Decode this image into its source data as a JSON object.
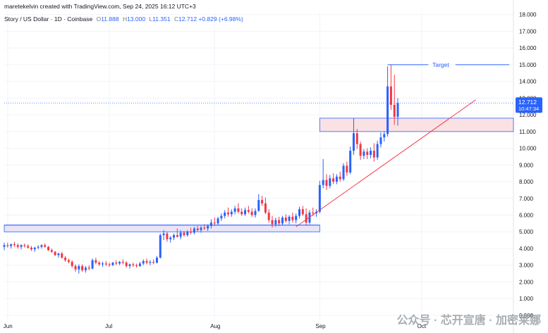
{
  "header": {
    "created_by": "maretekelvin created with TradingView.com, Sep 24, 2025 16:12 UTC+3",
    "symbol": "Story / US Dollar · 1D · Coinbase",
    "open_label": "O",
    "open": "11.888",
    "high_label": "H",
    "high": "13.000",
    "low_label": "L",
    "low": "11.351",
    "close_label": "C",
    "close": "12.712",
    "change": "+0.829 (+6.98%)"
  },
  "price_tag": {
    "price": "12.712",
    "countdown": "10:47:34"
  },
  "watermark": {
    "text": "公众号 · 芯开宣唐 · 加密莱娜"
  },
  "colors": {
    "up": "#2962ff",
    "down": "#f23645",
    "grid": "#f0f3fa",
    "zone_fill": "#f8d7da",
    "zone_border": "#2962ff",
    "trendline": "#f23645",
    "support_zone_fill": "#e1dcf5"
  },
  "chart_data": {
    "type": "candlestick",
    "x_ticks": [
      "Jun",
      "Jul",
      "Aug",
      "Sep",
      "Oct"
    ],
    "y_ticks": [
      "18.000",
      "17.000",
      "16.000",
      "15.000",
      "14.000",
      "13.000",
      "12.000",
      "11.000",
      "10.000",
      "9.000",
      "8.000",
      "7.000",
      "6.000",
      "5.000",
      "4.000",
      "3.000",
      "2.000",
      "1.000",
      "0.000"
    ],
    "ylim": [
      -0.3,
      18.2
    ],
    "annotations": [
      {
        "type": "label",
        "text": "Target",
        "price": 15.0
      },
      {
        "type": "zone",
        "price_low": 11.0,
        "price_high": 11.8,
        "from": "Sep 1",
        "to": "Oct 31"
      },
      {
        "type": "zone",
        "price_low": 5.0,
        "price_high": 5.4,
        "from": "May 31",
        "to": "Sep 1"
      },
      {
        "type": "trendline",
        "from_date": "Aug 25",
        "from_price": 5.3,
        "to_date": "Oct 17",
        "to_price": 12.9
      },
      {
        "type": "horizontal_line",
        "price": 5.4,
        "from": "May 31",
        "to": "Sep 1"
      }
    ],
    "candles": [
      {
        "d": "May 31",
        "o": 4.1,
        "h": 4.35,
        "l": 3.9,
        "c": 4.2
      },
      {
        "d": "Jun 1",
        "o": 4.2,
        "h": 4.35,
        "l": 4.05,
        "c": 4.15
      },
      {
        "d": "Jun 2",
        "o": 4.15,
        "h": 4.3,
        "l": 4.0,
        "c": 4.25
      },
      {
        "d": "Jun 3",
        "o": 4.25,
        "h": 4.4,
        "l": 4.1,
        "c": 4.2
      },
      {
        "d": "Jun 4",
        "o": 4.2,
        "h": 4.3,
        "l": 4.0,
        "c": 4.1
      },
      {
        "d": "Jun 5",
        "o": 4.1,
        "h": 4.25,
        "l": 3.95,
        "c": 4.2
      },
      {
        "d": "Jun 6",
        "o": 4.2,
        "h": 4.3,
        "l": 4.05,
        "c": 4.15
      },
      {
        "d": "Jun 7",
        "o": 4.15,
        "h": 4.25,
        "l": 4.0,
        "c": 4.05
      },
      {
        "d": "Jun 8",
        "o": 4.05,
        "h": 4.15,
        "l": 3.85,
        "c": 3.95
      },
      {
        "d": "Jun 9",
        "o": 3.95,
        "h": 4.1,
        "l": 3.8,
        "c": 4.05
      },
      {
        "d": "Jun 10",
        "o": 4.05,
        "h": 4.2,
        "l": 3.95,
        "c": 4.1
      },
      {
        "d": "Jun 11",
        "o": 4.1,
        "h": 4.25,
        "l": 4.0,
        "c": 4.2
      },
      {
        "d": "Jun 12",
        "o": 4.2,
        "h": 4.3,
        "l": 4.05,
        "c": 4.1
      },
      {
        "d": "Jun 13",
        "o": 4.1,
        "h": 4.15,
        "l": 3.85,
        "c": 3.9
      },
      {
        "d": "Jun 14",
        "o": 3.9,
        "h": 4.0,
        "l": 3.75,
        "c": 3.8
      },
      {
        "d": "Jun 15",
        "o": 3.8,
        "h": 3.85,
        "l": 3.55,
        "c": 3.6
      },
      {
        "d": "Jun 16",
        "o": 3.6,
        "h": 3.75,
        "l": 3.45,
        "c": 3.7
      },
      {
        "d": "Jun 17",
        "o": 3.7,
        "h": 3.8,
        "l": 3.4,
        "c": 3.45
      },
      {
        "d": "Jun 18",
        "o": 3.45,
        "h": 3.55,
        "l": 3.2,
        "c": 3.3
      },
      {
        "d": "Jun 19",
        "o": 3.3,
        "h": 3.4,
        "l": 3.1,
        "c": 3.2
      },
      {
        "d": "Jun 20",
        "o": 3.2,
        "h": 3.3,
        "l": 2.85,
        "c": 2.95
      },
      {
        "d": "Jun 21",
        "o": 2.95,
        "h": 3.05,
        "l": 2.6,
        "c": 2.75
      },
      {
        "d": "Jun 22",
        "o": 2.75,
        "h": 3.05,
        "l": 2.5,
        "c": 2.95
      },
      {
        "d": "Jun 23",
        "o": 2.95,
        "h": 3.05,
        "l": 2.6,
        "c": 2.7
      },
      {
        "d": "Jun 24",
        "o": 2.7,
        "h": 2.95,
        "l": 2.55,
        "c": 2.85
      },
      {
        "d": "Jun 25",
        "o": 2.85,
        "h": 3.0,
        "l": 2.7,
        "c": 2.8
      },
      {
        "d": "Jun 26",
        "o": 2.8,
        "h": 3.4,
        "l": 2.75,
        "c": 3.3
      },
      {
        "d": "Jun 27",
        "o": 3.3,
        "h": 3.45,
        "l": 3.05,
        "c": 3.15
      },
      {
        "d": "Jun 28",
        "o": 3.15,
        "h": 3.25,
        "l": 2.95,
        "c": 3.05
      },
      {
        "d": "Jun 29",
        "o": 3.05,
        "h": 3.2,
        "l": 2.9,
        "c": 3.1
      },
      {
        "d": "Jun 30",
        "o": 3.1,
        "h": 3.25,
        "l": 2.95,
        "c": 3.05
      },
      {
        "d": "Jul 1",
        "o": 3.05,
        "h": 3.15,
        "l": 2.9,
        "c": 3.0
      },
      {
        "d": "Jul 2",
        "o": 3.0,
        "h": 3.2,
        "l": 2.95,
        "c": 3.15
      },
      {
        "d": "Jul 3",
        "o": 3.15,
        "h": 3.3,
        "l": 3.0,
        "c": 3.1
      },
      {
        "d": "Jul 4",
        "o": 3.1,
        "h": 3.25,
        "l": 3.0,
        "c": 3.2
      },
      {
        "d": "Jul 5",
        "o": 3.2,
        "h": 3.35,
        "l": 3.05,
        "c": 3.15
      },
      {
        "d": "Jul 6",
        "o": 3.15,
        "h": 3.25,
        "l": 2.85,
        "c": 2.95
      },
      {
        "d": "Jul 7",
        "o": 2.95,
        "h": 3.1,
        "l": 2.8,
        "c": 3.05
      },
      {
        "d": "Jul 8",
        "o": 3.05,
        "h": 3.15,
        "l": 2.9,
        "c": 3.0
      },
      {
        "d": "Jul 9",
        "o": 3.0,
        "h": 3.1,
        "l": 2.85,
        "c": 2.95
      },
      {
        "d": "Jul 10",
        "o": 2.95,
        "h": 3.2,
        "l": 2.9,
        "c": 3.1
      },
      {
        "d": "Jul 11",
        "o": 3.1,
        "h": 3.35,
        "l": 3.0,
        "c": 3.25
      },
      {
        "d": "Jul 12",
        "o": 3.25,
        "h": 3.4,
        "l": 3.05,
        "c": 3.15
      },
      {
        "d": "Jul 13",
        "o": 3.15,
        "h": 3.3,
        "l": 3.0,
        "c": 3.2
      },
      {
        "d": "Jul 14",
        "o": 3.2,
        "h": 3.35,
        "l": 3.05,
        "c": 3.15
      },
      {
        "d": "Jul 15",
        "o": 3.15,
        "h": 3.55,
        "l": 3.1,
        "c": 3.45
      },
      {
        "d": "Jul 16",
        "o": 3.45,
        "h": 4.9,
        "l": 3.4,
        "c": 4.8
      },
      {
        "d": "Jul 17",
        "o": 4.8,
        "h": 5.1,
        "l": 4.5,
        "c": 4.9
      },
      {
        "d": "Jul 18",
        "o": 4.9,
        "h": 5.0,
        "l": 4.4,
        "c": 4.55
      },
      {
        "d": "Jul 19",
        "o": 4.55,
        "h": 4.75,
        "l": 4.35,
        "c": 4.65
      },
      {
        "d": "Jul 20",
        "o": 4.65,
        "h": 4.9,
        "l": 4.5,
        "c": 4.8
      },
      {
        "d": "Jul 21",
        "o": 4.8,
        "h": 5.2,
        "l": 4.65,
        "c": 4.7
      },
      {
        "d": "Jul 22",
        "o": 4.7,
        "h": 5.1,
        "l": 4.55,
        "c": 4.95
      },
      {
        "d": "Jul 23",
        "o": 4.95,
        "h": 5.05,
        "l": 4.7,
        "c": 4.8
      },
      {
        "d": "Jul 24",
        "o": 4.8,
        "h": 5.1,
        "l": 4.7,
        "c": 5.0
      },
      {
        "d": "Jul 25",
        "o": 5.0,
        "h": 5.25,
        "l": 4.85,
        "c": 4.95
      },
      {
        "d": "Jul 26",
        "o": 4.95,
        "h": 5.3,
        "l": 4.85,
        "c": 5.2
      },
      {
        "d": "Jul 27",
        "o": 5.2,
        "h": 5.35,
        "l": 5.0,
        "c": 5.1
      },
      {
        "d": "Jul 28",
        "o": 5.1,
        "h": 5.35,
        "l": 4.95,
        "c": 5.25
      },
      {
        "d": "Jul 29",
        "o": 5.25,
        "h": 5.45,
        "l": 5.1,
        "c": 5.2
      },
      {
        "d": "Jul 30",
        "o": 5.2,
        "h": 5.45,
        "l": 5.05,
        "c": 5.35
      },
      {
        "d": "Jul 31",
        "o": 5.35,
        "h": 5.75,
        "l": 5.2,
        "c": 5.55
      },
      {
        "d": "Aug 1",
        "o": 5.55,
        "h": 5.85,
        "l": 5.35,
        "c": 5.5
      },
      {
        "d": "Aug 2",
        "o": 5.5,
        "h": 5.9,
        "l": 5.4,
        "c": 5.8
      },
      {
        "d": "Aug 3",
        "o": 5.8,
        "h": 6.1,
        "l": 5.65,
        "c": 5.95
      },
      {
        "d": "Aug 4",
        "o": 5.95,
        "h": 6.3,
        "l": 5.8,
        "c": 6.15
      },
      {
        "d": "Aug 5",
        "o": 6.15,
        "h": 6.45,
        "l": 5.9,
        "c": 6.05
      },
      {
        "d": "Aug 6",
        "o": 6.05,
        "h": 6.35,
        "l": 5.9,
        "c": 6.2
      },
      {
        "d": "Aug 7",
        "o": 6.2,
        "h": 6.55,
        "l": 6.05,
        "c": 6.4
      },
      {
        "d": "Aug 8",
        "o": 6.4,
        "h": 6.7,
        "l": 6.1,
        "c": 6.2
      },
      {
        "d": "Aug 9",
        "o": 6.2,
        "h": 6.4,
        "l": 5.95,
        "c": 6.05
      },
      {
        "d": "Aug 10",
        "o": 6.05,
        "h": 6.45,
        "l": 5.95,
        "c": 6.3
      },
      {
        "d": "Aug 11",
        "o": 6.3,
        "h": 6.55,
        "l": 6.1,
        "c": 6.2
      },
      {
        "d": "Aug 12",
        "o": 6.2,
        "h": 6.4,
        "l": 5.9,
        "c": 6.0
      },
      {
        "d": "Aug 13",
        "o": 6.0,
        "h": 6.4,
        "l": 5.85,
        "c": 6.25
      },
      {
        "d": "Aug 14",
        "o": 6.25,
        "h": 7.25,
        "l": 6.2,
        "c": 6.9
      },
      {
        "d": "Aug 15",
        "o": 6.9,
        "h": 7.15,
        "l": 6.55,
        "c": 6.7
      },
      {
        "d": "Aug 16",
        "o": 6.7,
        "h": 7.05,
        "l": 6.05,
        "c": 6.15
      },
      {
        "d": "Aug 17",
        "o": 6.15,
        "h": 6.35,
        "l": 5.55,
        "c": 5.7
      },
      {
        "d": "Aug 18",
        "o": 5.7,
        "h": 5.95,
        "l": 5.25,
        "c": 5.45
      },
      {
        "d": "Aug 19",
        "o": 5.45,
        "h": 5.85,
        "l": 5.3,
        "c": 5.7
      },
      {
        "d": "Aug 20",
        "o": 5.7,
        "h": 5.9,
        "l": 5.35,
        "c": 5.5
      },
      {
        "d": "Aug 21",
        "o": 5.5,
        "h": 5.95,
        "l": 5.4,
        "c": 5.85
      },
      {
        "d": "Aug 22",
        "o": 5.85,
        "h": 6.05,
        "l": 5.55,
        "c": 5.65
      },
      {
        "d": "Aug 23",
        "o": 5.65,
        "h": 6.0,
        "l": 5.45,
        "c": 5.9
      },
      {
        "d": "Aug 24",
        "o": 5.9,
        "h": 6.15,
        "l": 5.55,
        "c": 5.7
      },
      {
        "d": "Aug 25",
        "o": 5.7,
        "h": 6.1,
        "l": 5.5,
        "c": 5.95
      },
      {
        "d": "Aug 26",
        "o": 5.95,
        "h": 6.5,
        "l": 5.8,
        "c": 6.35
      },
      {
        "d": "Aug 27",
        "o": 6.35,
        "h": 6.55,
        "l": 5.95,
        "c": 6.05
      },
      {
        "d": "Aug 28",
        "o": 6.05,
        "h": 6.4,
        "l": 5.4,
        "c": 5.55
      },
      {
        "d": "Aug 29",
        "o": 5.55,
        "h": 6.3,
        "l": 5.45,
        "c": 6.15
      },
      {
        "d": "Aug 30",
        "o": 6.15,
        "h": 6.45,
        "l": 5.95,
        "c": 6.1
      },
      {
        "d": "Aug 31",
        "o": 6.1,
        "h": 6.35,
        "l": 5.9,
        "c": 6.2
      },
      {
        "d": "Sep 1",
        "o": 6.2,
        "h": 8.05,
        "l": 6.1,
        "c": 7.8
      },
      {
        "d": "Sep 2",
        "o": 7.8,
        "h": 9.35,
        "l": 7.6,
        "c": 8.1
      },
      {
        "d": "Sep 3",
        "o": 8.1,
        "h": 8.45,
        "l": 7.5,
        "c": 7.75
      },
      {
        "d": "Sep 4",
        "o": 7.75,
        "h": 8.4,
        "l": 7.6,
        "c": 8.2
      },
      {
        "d": "Sep 5",
        "o": 8.2,
        "h": 8.5,
        "l": 7.85,
        "c": 8.0
      },
      {
        "d": "Sep 6",
        "o": 8.0,
        "h": 8.45,
        "l": 7.85,
        "c": 8.3
      },
      {
        "d": "Sep 7",
        "o": 8.3,
        "h": 8.6,
        "l": 8.0,
        "c": 8.15
      },
      {
        "d": "Sep 8",
        "o": 8.15,
        "h": 9.1,
        "l": 8.05,
        "c": 8.95
      },
      {
        "d": "Sep 9",
        "o": 8.95,
        "h": 9.2,
        "l": 8.35,
        "c": 8.55
      },
      {
        "d": "Sep 10",
        "o": 8.55,
        "h": 10.1,
        "l": 8.45,
        "c": 9.85
      },
      {
        "d": "Sep 11",
        "o": 9.85,
        "h": 11.8,
        "l": 9.6,
        "c": 10.9
      },
      {
        "d": "Sep 12",
        "o": 10.9,
        "h": 11.15,
        "l": 9.95,
        "c": 10.25
      },
      {
        "d": "Sep 13",
        "o": 10.25,
        "h": 10.4,
        "l": 9.3,
        "c": 9.55
      },
      {
        "d": "Sep 14",
        "o": 9.55,
        "h": 9.95,
        "l": 9.35,
        "c": 9.8
      },
      {
        "d": "Sep 15",
        "o": 9.8,
        "h": 10.0,
        "l": 9.35,
        "c": 9.6
      },
      {
        "d": "Sep 16",
        "o": 9.6,
        "h": 10.05,
        "l": 9.4,
        "c": 9.85
      },
      {
        "d": "Sep 17",
        "o": 9.85,
        "h": 10.3,
        "l": 9.2,
        "c": 9.45
      },
      {
        "d": "Sep 18",
        "o": 9.45,
        "h": 10.45,
        "l": 9.3,
        "c": 10.25
      },
      {
        "d": "Sep 19",
        "o": 10.25,
        "h": 10.95,
        "l": 10.05,
        "c": 10.65
      },
      {
        "d": "Sep 20",
        "o": 10.65,
        "h": 11.0,
        "l": 10.4,
        "c": 10.85
      },
      {
        "d": "Sep 21",
        "o": 10.85,
        "h": 14.9,
        "l": 10.7,
        "c": 13.7
      },
      {
        "d": "Sep 22",
        "o": 13.7,
        "h": 15.0,
        "l": 12.3,
        "c": 12.6
      },
      {
        "d": "Sep 23",
        "o": 12.6,
        "h": 14.4,
        "l": 11.4,
        "c": 11.88
      },
      {
        "d": "Sep 24",
        "o": 11.888,
        "h": 13.0,
        "l": 11.351,
        "c": 12.712
      }
    ]
  }
}
